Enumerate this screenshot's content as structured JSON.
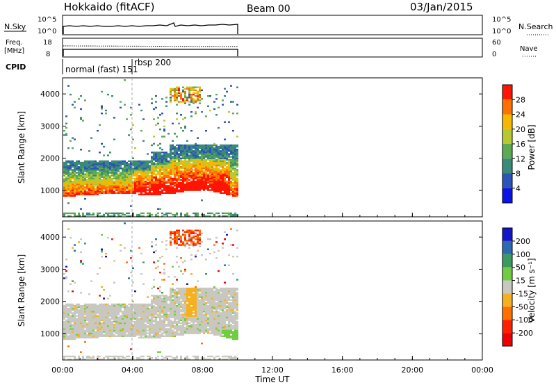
{
  "header": {
    "station": "Hokkaido (fitACF)",
    "beam": "Beam 00",
    "date": "03/Jan/2015"
  },
  "status_panels": {
    "nsky_label": "N.Sky",
    "nsky_ticks": [
      "10^5",
      "10^0"
    ],
    "nsky_right_ticks": [
      "10^5",
      "10^0"
    ],
    "nsearch_label": "N.Search",
    "freq_label": "Freq.",
    "freq_unit": "[MHz]",
    "freq_ticks": [
      "18",
      "8"
    ],
    "nave_ticks": [
      "60",
      "0"
    ],
    "nave_label": "Nave",
    "cpid_label": "CPID",
    "cpid_modes": [
      "normal (fast) 151",
      "rbsp 200"
    ]
  },
  "chart_data": [
    {
      "type": "heatmap",
      "title": "",
      "ylabel": "Slant Range [km]",
      "xlabel": "",
      "yticks": [
        1000,
        2000,
        3000,
        4000
      ],
      "ylim": [
        180,
        4500
      ],
      "xlim_hours": [
        0,
        24
      ],
      "colorbar": {
        "label": "Power [dB]",
        "tick_labels": [
          "28",
          "24",
          "20",
          "16",
          "12",
          "8",
          "4"
        ],
        "levels": [
          0,
          4,
          8,
          12,
          16,
          20,
          24,
          28,
          32
        ],
        "colors": [
          "#0a14e6",
          "#2a54b8",
          "#3a8a78",
          "#5cab50",
          "#b8c832",
          "#f5b800",
          "#ff7000",
          "#ff1400"
        ]
      }
    },
    {
      "type": "heatmap",
      "title": "",
      "ylabel": "Slant Range [km]",
      "xlabel": "Time UT",
      "yticks": [
        1000,
        2000,
        3000,
        4000
      ],
      "ylim": [
        180,
        4500
      ],
      "xticks": [
        "00:00",
        "04:00",
        "08:00",
        "12:00",
        "16:00",
        "20:00",
        "00:00"
      ],
      "colorbar": {
        "label": "Velocity [m s⁻¹]",
        "tick_labels": [
          "200",
          "100",
          "50",
          "15",
          "-15",
          "-50",
          "-100",
          "-200"
        ],
        "colors": [
          "#1414c8",
          "#2a6ab0",
          "#3a9a60",
          "#70cc40",
          "#c8c8c0",
          "#f5b020",
          "#ff7000",
          "#ff2000",
          "#ee0000"
        ]
      }
    }
  ]
}
